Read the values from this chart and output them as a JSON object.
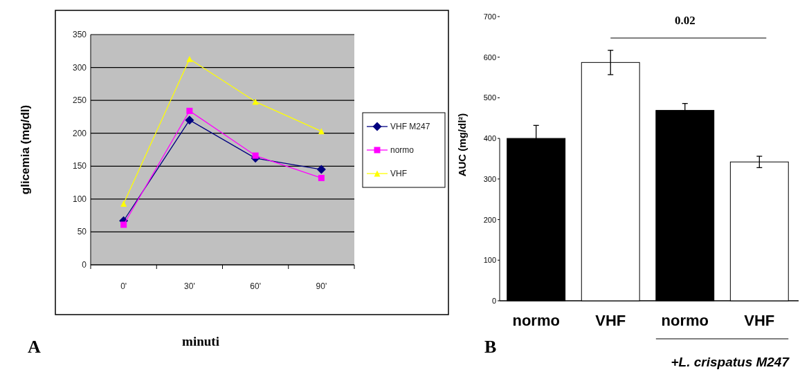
{
  "chart_data": [
    {
      "type": "line",
      "xlabel": "minuti",
      "ylabel": "glicemia (mg/dl)",
      "categories": [
        "0'",
        "30'",
        "60'",
        "90'"
      ],
      "ylim": [
        0,
        350
      ],
      "yticks": [
        0,
        50,
        100,
        150,
        200,
        250,
        300,
        350
      ],
      "grid": "y",
      "legend": "right",
      "annotations": [
        "A"
      ],
      "series": [
        {
          "name": "VHF M247",
          "color": "#000080",
          "marker": "diamond",
          "values": [
            67,
            220,
            162,
            145
          ]
        },
        {
          "name": "normo",
          "color": "#ff00ff",
          "marker": "square",
          "values": [
            61,
            234,
            166,
            132
          ]
        },
        {
          "name": "VHF",
          "color": "#ffff00",
          "marker": "triangle",
          "values": [
            93,
            313,
            248,
            203
          ]
        }
      ]
    },
    {
      "type": "bar",
      "ylabel": "AUC (mg/dl²)",
      "categories": [
        "normo",
        "VHF",
        "normo",
        "VHF"
      ],
      "ylim": [
        0,
        700
      ],
      "yticks": [
        0,
        100,
        200,
        300,
        400,
        500,
        600,
        700
      ],
      "values": [
        400,
        587,
        469,
        342
      ],
      "colors": [
        "#000000",
        "#ffffff",
        "#000000",
        "#ffffff"
      ],
      "errors": [
        32,
        30,
        17,
        14
      ],
      "annotations": [
        "B",
        "0.02",
        "+L. crispatus M247"
      ]
    }
  ]
}
